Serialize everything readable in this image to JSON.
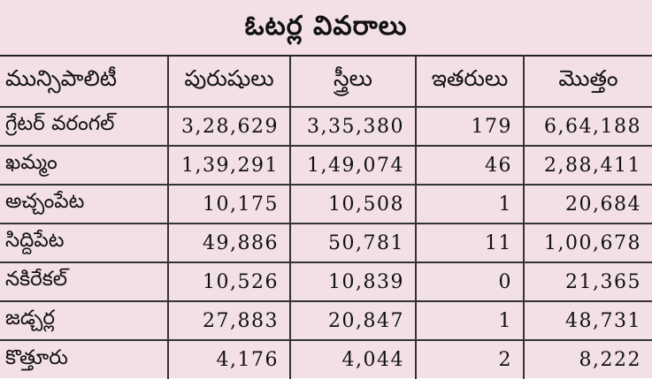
{
  "title": "ఓటర్ల వివరాలు",
  "columns": [
    "మున్సిపాలిటీ",
    "పురుషులు",
    "స్త్రీలు",
    "ఇతరులు",
    "మొత్తం"
  ],
  "rows": [
    {
      "name": "గ్రేటర్ వరంగల్",
      "men": "3,28,629",
      "women": "3,35,380",
      "others": "179",
      "total": "6,64,188"
    },
    {
      "name": "ఖమ్మం",
      "men": "1,39,291",
      "women": "1,49,074",
      "others": "46",
      "total": "2,88,411"
    },
    {
      "name": "అచ్చంపేట",
      "men": "10,175",
      "women": "10,508",
      "others": "1",
      "total": "20,684"
    },
    {
      "name": "సిద్దిపేట",
      "men": "49,886",
      "women": "50,781",
      "others": "11",
      "total": "1,00,678"
    },
    {
      "name": "నకిరేకల్",
      "men": "10,526",
      "women": "10,839",
      "others": "0",
      "total": "21,365"
    },
    {
      "name": "జడ్చర్ల",
      "men": "27,883",
      "women": "20,847",
      "others": "1",
      "total": "48,731"
    },
    {
      "name": "కొత్తూరు",
      "men": "4,176",
      "women": "4,044",
      "others": "2",
      "total": "8,222"
    }
  ]
}
